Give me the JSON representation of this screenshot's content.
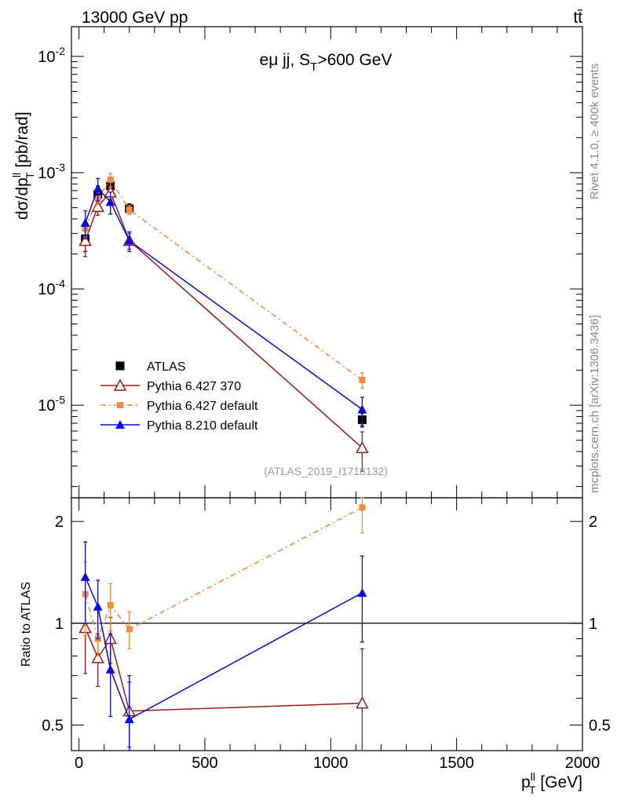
{
  "header": {
    "left_title": "13000 GeV pp",
    "right_title": "tt̄"
  },
  "side_labels": {
    "rivet": "Rivet 4.1.0, ≥ 400k events",
    "mcplots": "mcplots.cern.ch [arXiv:1306.3436]"
  },
  "colors": {
    "atlas": "#000000",
    "py6_370": "#9b1b1b",
    "py6_default": "#f58a3c",
    "py8_default": "#0a0adc"
  },
  "chart_data": [
    {
      "type": "line",
      "panel": "main",
      "title": "eμ jj, S_T>600 GeV",
      "title_main": "eμ jj, S",
      "title_sub": "T",
      "title_rest": ">600 GeV",
      "analysis_tag": "(ATLAS_2019_I1718132)",
      "ylabel": "dσ/dp_T^ll [pb/rad]",
      "ylabel_main": "dσ/dp",
      "ylabel_sup": "ll",
      "ylabel_sub": "T",
      "ylabel_rest": " [pb/rad]",
      "yscale": "log",
      "ylim": [
        1.6e-06,
        0.018
      ],
      "xlim": [
        -30,
        2000
      ],
      "yticks": [
        {
          "value": 1e-05,
          "base": "10",
          "exp": "-5"
        },
        {
          "value": 0.0001,
          "base": "10",
          "exp": "-4"
        },
        {
          "value": 0.001,
          "base": "10",
          "exp": "-3"
        },
        {
          "value": 0.01,
          "base": "10",
          "exp": "-2"
        }
      ],
      "legend_position": "lower-left",
      "series": [
        {
          "name": "ATLAS",
          "key": "atlas",
          "marker": "square",
          "line": "none",
          "x": [
            25,
            75,
            125,
            200,
            1125
          ],
          "y": [
            0.00027,
            0.00065,
            0.00077,
            0.00049,
            7.5e-06
          ],
          "err": [
            6e-05,
            0.00012,
            0.0001,
            5e-05,
            1e-06
          ]
        },
        {
          "name": "Pythia 6.427 370",
          "key": "py6_370",
          "marker": "open-triangle",
          "line": "solid",
          "x": [
            25,
            75,
            125,
            200,
            1125
          ],
          "y": [
            0.00026,
            0.00051,
            0.00068,
            0.00026,
            4.3e-06
          ],
          "err": [
            7e-05,
            8e-05,
            9e-05,
            4e-05,
            1.6e-06
          ]
        },
        {
          "name": "Pythia 6.427 default",
          "key": "py6_default",
          "marker": "small-square",
          "line": "dashdot",
          "x": [
            25,
            75,
            125,
            200,
            1125
          ],
          "y": [
            0.00033,
            0.0006,
            0.00087,
            0.00048,
            1.65e-05
          ],
          "err": [
            5e-05,
            7e-05,
            0.00012,
            4e-05,
            2.5e-06
          ]
        },
        {
          "name": "Pythia 8.210 default",
          "key": "py8_default",
          "marker": "filled-triangle",
          "line": "solid",
          "x": [
            25,
            75,
            125,
            200,
            1125
          ],
          "y": [
            0.00037,
            0.00073,
            0.00056,
            0.00026,
            9.2e-06
          ],
          "err": [
            0.0001,
            0.00016,
            0.00012,
            5e-05,
            2.5e-06
          ]
        }
      ]
    },
    {
      "type": "line",
      "panel": "ratio",
      "ylabel": "Ratio to ATLAS",
      "xlabel": "p_T^ll [GeV]",
      "xlabel_main": "p",
      "xlabel_sup": "ll",
      "xlabel_sub": "T",
      "xlabel_rest": " [GeV]",
      "yscale": "log",
      "ylim": [
        0.42,
        2.35
      ],
      "xlim": [
        -30,
        2000
      ],
      "reference_line": 1,
      "yticks": [
        0.5,
        1,
        2
      ],
      "yticks_labels": [
        "0.5",
        "1",
        "2"
      ],
      "xticks": [
        0,
        500,
        1000,
        1500,
        2000
      ],
      "xticks_labels": [
        "0",
        "500",
        "1000",
        "1500",
        "2000"
      ],
      "series": [
        {
          "name": "Pythia 6.427 370",
          "key": "py6_370",
          "marker": "open-triangle",
          "line": "solid",
          "x": [
            25,
            75,
            125,
            200,
            1125
          ],
          "y": [
            0.97,
            0.79,
            0.9,
            0.55,
            0.58
          ],
          "err": [
            0.26,
            0.14,
            0.14,
            0.12,
            0.26
          ]
        },
        {
          "name": "Pythia 6.427 default",
          "key": "py6_default",
          "marker": "small-square",
          "line": "dashdot",
          "x": [
            25,
            75,
            125,
            200,
            1125
          ],
          "y": [
            1.22,
            0.9,
            1.13,
            0.96,
            2.2
          ],
          "err": [
            0.3,
            0.1,
            0.18,
            0.12,
            0.35
          ]
        },
        {
          "name": "Pythia 8.210 default",
          "key": "py8_default",
          "marker": "filled-triangle",
          "line": "solid",
          "x": [
            25,
            75,
            125,
            200,
            1125
          ],
          "y": [
            1.37,
            1.12,
            0.73,
            0.52,
            1.23
          ],
          "err": [
            0.37,
            0.22,
            0.2,
            0.18,
            0.35
          ]
        }
      ]
    }
  ]
}
